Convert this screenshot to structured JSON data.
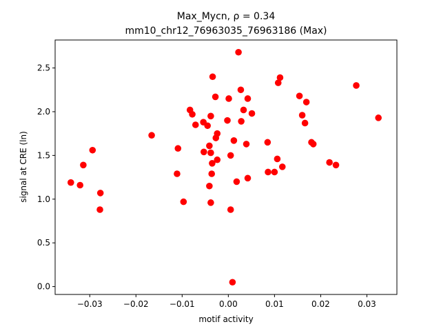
{
  "chart_data": {
    "type": "scatter",
    "title_line1": "Max_Mycn, ρ = 0.34",
    "title_line2": "mm10_chr12_76963035_76963186 (Max)",
    "xlabel": "motif activity",
    "ylabel": "signal at CRE (ln)",
    "xlim": [
      -0.0375,
      0.0365
    ],
    "ylim": [
      -0.09,
      2.82
    ],
    "xticks": [
      -0.03,
      -0.02,
      -0.01,
      0.0,
      0.01,
      0.02,
      0.03
    ],
    "xtick_labels": [
      "−0.03",
      "−0.02",
      "−0.01",
      "0.00",
      "0.01",
      "0.02",
      "0.03"
    ],
    "yticks": [
      0.0,
      0.5,
      1.0,
      1.5,
      2.0,
      2.5
    ],
    "ytick_labels": [
      "0.0",
      "0.5",
      "1.0",
      "1.5",
      "2.0",
      "2.5"
    ],
    "grid": false,
    "marker_color": "#ff0000",
    "points": [
      {
        "x": -0.0341,
        "y": 1.19
      },
      {
        "x": -0.0321,
        "y": 1.16
      },
      {
        "x": -0.0314,
        "y": 1.39
      },
      {
        "x": -0.0294,
        "y": 1.56
      },
      {
        "x": -0.0277,
        "y": 1.07
      },
      {
        "x": -0.0278,
        "y": 0.88
      },
      {
        "x": -0.0166,
        "y": 1.73
      },
      {
        "x": -0.0109,
        "y": 1.58
      },
      {
        "x": -0.0111,
        "y": 1.29
      },
      {
        "x": -0.0097,
        "y": 0.97
      },
      {
        "x": -0.0083,
        "y": 2.02
      },
      {
        "x": -0.0078,
        "y": 1.97
      },
      {
        "x": -0.0071,
        "y": 1.85
      },
      {
        "x": -0.0054,
        "y": 1.88
      },
      {
        "x": -0.0053,
        "y": 1.54
      },
      {
        "x": -0.0045,
        "y": 1.84
      },
      {
        "x": -0.0041,
        "y": 1.61
      },
      {
        "x": -0.0038,
        "y": 1.53
      },
      {
        "x": -0.0041,
        "y": 1.15
      },
      {
        "x": -0.0038,
        "y": 1.95
      },
      {
        "x": -0.0036,
        "y": 1.29
      },
      {
        "x": -0.0035,
        "y": 1.41
      },
      {
        "x": -0.0034,
        "y": 2.4
      },
      {
        "x": -0.0038,
        "y": 0.96
      },
      {
        "x": -0.0028,
        "y": 2.17
      },
      {
        "x": -0.0027,
        "y": 1.7
      },
      {
        "x": -0.0024,
        "y": 1.75
      },
      {
        "x": -0.0024,
        "y": 1.45
      },
      {
        "x": -0.0002,
        "y": 1.9
      },
      {
        "x": 0.0001,
        "y": 2.15
      },
      {
        "x": 0.0005,
        "y": 1.5
      },
      {
        "x": 0.0005,
        "y": 0.88
      },
      {
        "x": 0.0009,
        "y": 0.05
      },
      {
        "x": 0.0012,
        "y": 1.67
      },
      {
        "x": 0.0018,
        "y": 1.2
      },
      {
        "x": 0.0022,
        "y": 2.68
      },
      {
        "x": 0.0027,
        "y": 2.25
      },
      {
        "x": 0.0028,
        "y": 1.89
      },
      {
        "x": 0.0033,
        "y": 2.02
      },
      {
        "x": 0.0039,
        "y": 1.63
      },
      {
        "x": 0.0042,
        "y": 2.15
      },
      {
        "x": 0.0042,
        "y": 1.24
      },
      {
        "x": 0.0051,
        "y": 1.98
      },
      {
        "x": 0.0085,
        "y": 1.65
      },
      {
        "x": 0.0086,
        "y": 1.31
      },
      {
        "x": 0.01,
        "y": 1.31
      },
      {
        "x": 0.0106,
        "y": 1.46
      },
      {
        "x": 0.0108,
        "y": 2.33
      },
      {
        "x": 0.0112,
        "y": 2.39
      },
      {
        "x": 0.0117,
        "y": 1.37
      },
      {
        "x": 0.0154,
        "y": 2.18
      },
      {
        "x": 0.016,
        "y": 1.96
      },
      {
        "x": 0.0166,
        "y": 1.87
      },
      {
        "x": 0.0169,
        "y": 2.11
      },
      {
        "x": 0.018,
        "y": 1.65
      },
      {
        "x": 0.0184,
        "y": 1.63
      },
      {
        "x": 0.0219,
        "y": 1.42
      },
      {
        "x": 0.0233,
        "y": 1.39
      },
      {
        "x": 0.0277,
        "y": 2.3
      },
      {
        "x": 0.0325,
        "y": 1.93
      }
    ]
  }
}
